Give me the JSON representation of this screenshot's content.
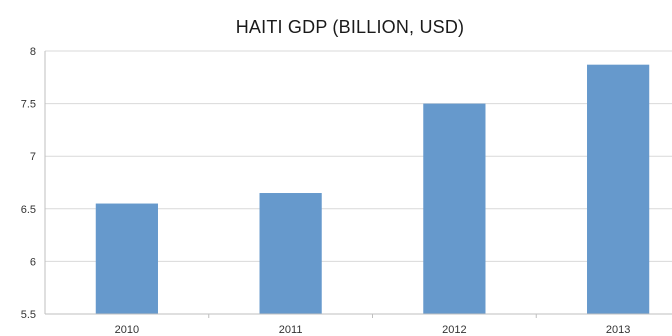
{
  "chart_data": {
    "type": "bar",
    "title": "HAITI GDP (BILLION, USD)",
    "xlabel": "",
    "ylabel": "",
    "categories": [
      "2010",
      "2011",
      "2012",
      "2013"
    ],
    "values": [
      6.55,
      6.65,
      7.5,
      7.87
    ],
    "ylim": [
      5.5,
      8
    ],
    "yticks": [
      "5.5",
      "6",
      "6.5",
      "7",
      "7.5",
      "8"
    ],
    "grid": true,
    "legend": "none",
    "colors": {
      "bar": "#6699cc",
      "grid": "#d9d9d9",
      "axis": "#bfbfbf"
    }
  }
}
